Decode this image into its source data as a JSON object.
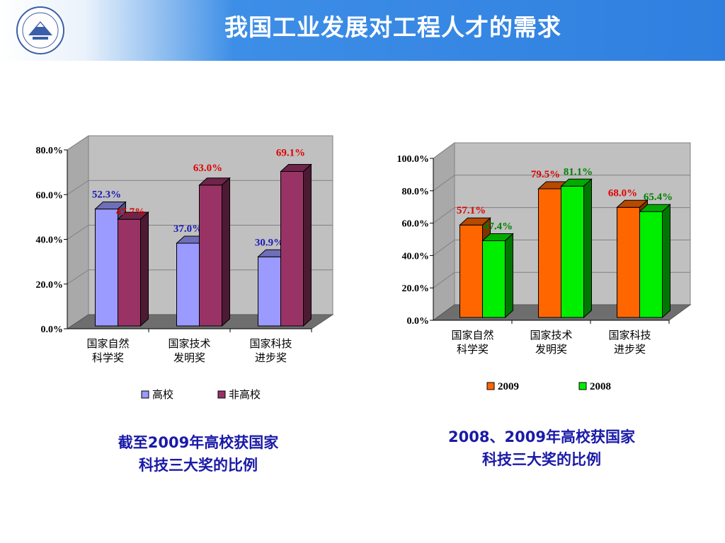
{
  "header": {
    "title": "我国工业发展对工程人才的需求"
  },
  "colors": {
    "gaoxiao": "#9a9aff",
    "fei_gaoxiao": "#993366",
    "y2009": "#ff6600",
    "y2008": "#00ee00",
    "label_blue": "#1a1ab8",
    "label_red": "#e00000",
    "label_green": "#008000"
  },
  "captions": {
    "left_line1": "截至2009年高校获国家",
    "left_line2": "科技三大奖的比例",
    "right_line1": "2008、2009年高校获国家",
    "right_line2": "科技三大奖的比例"
  },
  "chart_data": [
    {
      "type": "bar",
      "categories": [
        [
          "国家自然",
          "科学奖"
        ],
        [
          "国家技术",
          "发明奖"
        ],
        [
          "国家科技",
          "进步奖"
        ]
      ],
      "series": [
        {
          "name": "高校",
          "values": [
            52.3,
            37.0,
            30.9
          ],
          "labels": [
            "52.3%",
            "37.0%",
            "30.9%"
          ],
          "color": "#9a9aff",
          "label_color": "#1a1ab8"
        },
        {
          "name": "非高校",
          "values": [
            47.7,
            63.0,
            69.1
          ],
          "labels": [
            "47.7%",
            "63.0%",
            "69.1%"
          ],
          "color": "#993366",
          "label_color": "#e00000"
        }
      ],
      "ylim": [
        0,
        80
      ],
      "yticks": [
        "0.0%",
        "20.0%",
        "40.0%",
        "60.0%",
        "80.0%"
      ],
      "legend": "bottom"
    },
    {
      "type": "bar",
      "categories": [
        [
          "国家自然",
          "科学奖"
        ],
        [
          "国家技术",
          "发明奖"
        ],
        [
          "国家科技",
          "进步奖"
        ]
      ],
      "series": [
        {
          "name": "2009",
          "values": [
            57.1,
            79.5,
            68.0
          ],
          "labels": [
            "57.1%",
            "79.5%",
            "68.0%"
          ],
          "color": "#ff6600",
          "label_color": "#e00000"
        },
        {
          "name": "2008",
          "values": [
            47.4,
            81.1,
            65.4
          ],
          "labels": [
            "47.4%",
            "81.1%",
            "65.4%"
          ],
          "color": "#00ee00",
          "label_color": "#008000"
        }
      ],
      "ylim": [
        0,
        100
      ],
      "yticks": [
        "0.0%",
        "20.0%",
        "40.0%",
        "60.0%",
        "80.0%",
        "100.0%"
      ],
      "legend": "bottom"
    }
  ]
}
